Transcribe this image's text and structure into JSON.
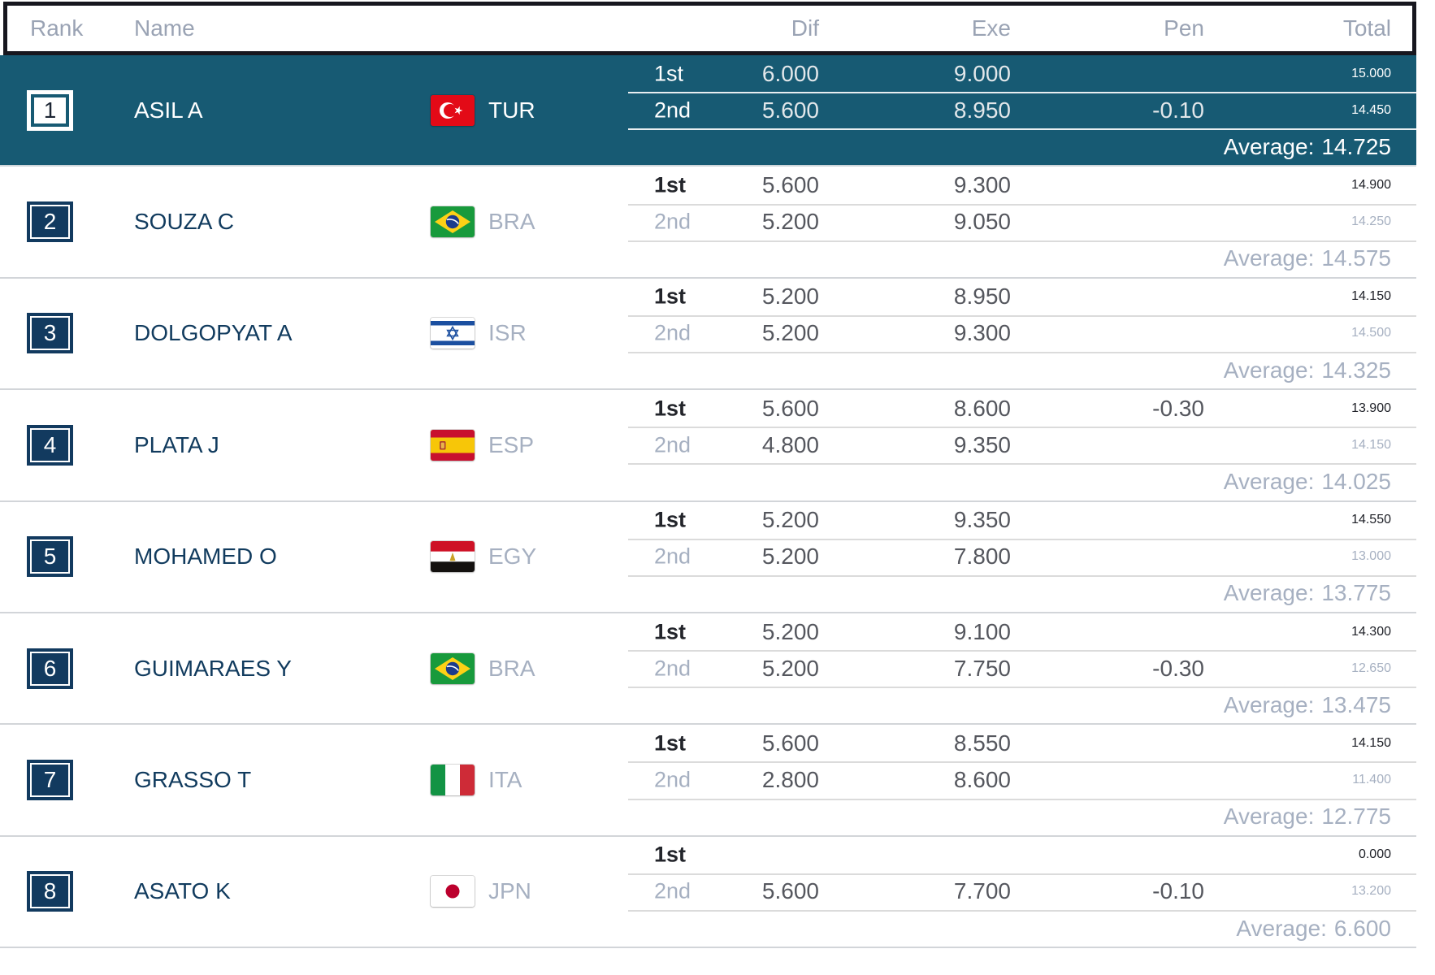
{
  "header": {
    "rank": "Rank",
    "name": "Name",
    "dif": "Dif",
    "exe": "Exe",
    "pen": "Pen",
    "total": "Total"
  },
  "colors": {
    "highlight_row_bg": "#175a73",
    "rank_badge_navy": "#123a5f",
    "athlete_name_navy": "#113b5e",
    "muted_blue_gray": "#a6b0c1",
    "header_border": "#17171f"
  },
  "rows": [
    {
      "rank": "1",
      "name": "ASIL A",
      "country": "TUR",
      "flag": "tur",
      "highlight": true,
      "attempts": [
        {
          "label": "1st",
          "dif": "6.000",
          "exe": "9.000",
          "pen": "",
          "total": "15.000"
        },
        {
          "label": "2nd",
          "dif": "5.600",
          "exe": "8.950",
          "pen": "-0.10",
          "total": "14.450"
        }
      ],
      "average_label": "Average:",
      "average": "14.725"
    },
    {
      "rank": "2",
      "name": "SOUZA C",
      "country": "BRA",
      "flag": "bra",
      "highlight": false,
      "attempts": [
        {
          "label": "1st",
          "dif": "5.600",
          "exe": "9.300",
          "pen": "",
          "total": "14.900"
        },
        {
          "label": "2nd",
          "dif": "5.200",
          "exe": "9.050",
          "pen": "",
          "total": "14.250"
        }
      ],
      "average_label": "Average:",
      "average": "14.575"
    },
    {
      "rank": "3",
      "name": "DOLGOPYAT A",
      "country": "ISR",
      "flag": "isr",
      "highlight": false,
      "attempts": [
        {
          "label": "1st",
          "dif": "5.200",
          "exe": "8.950",
          "pen": "",
          "total": "14.150"
        },
        {
          "label": "2nd",
          "dif": "5.200",
          "exe": "9.300",
          "pen": "",
          "total": "14.500"
        }
      ],
      "average_label": "Average:",
      "average": "14.325"
    },
    {
      "rank": "4",
      "name": "PLATA J",
      "country": "ESP",
      "flag": "esp",
      "highlight": false,
      "attempts": [
        {
          "label": "1st",
          "dif": "5.600",
          "exe": "8.600",
          "pen": "-0.30",
          "total": "13.900"
        },
        {
          "label": "2nd",
          "dif": "4.800",
          "exe": "9.350",
          "pen": "",
          "total": "14.150"
        }
      ],
      "average_label": "Average:",
      "average": "14.025"
    },
    {
      "rank": "5",
      "name": "MOHAMED O",
      "country": "EGY",
      "flag": "egy",
      "highlight": false,
      "attempts": [
        {
          "label": "1st",
          "dif": "5.200",
          "exe": "9.350",
          "pen": "",
          "total": "14.550"
        },
        {
          "label": "2nd",
          "dif": "5.200",
          "exe": "7.800",
          "pen": "",
          "total": "13.000"
        }
      ],
      "average_label": "Average:",
      "average": "13.775"
    },
    {
      "rank": "6",
      "name": "GUIMARAES Y",
      "country": "BRA",
      "flag": "bra",
      "highlight": false,
      "attempts": [
        {
          "label": "1st",
          "dif": "5.200",
          "exe": "9.100",
          "pen": "",
          "total": "14.300"
        },
        {
          "label": "2nd",
          "dif": "5.200",
          "exe": "7.750",
          "pen": "-0.30",
          "total": "12.650"
        }
      ],
      "average_label": "Average:",
      "average": "13.475"
    },
    {
      "rank": "7",
      "name": "GRASSO T",
      "country": "ITA",
      "flag": "ita",
      "highlight": false,
      "attempts": [
        {
          "label": "1st",
          "dif": "5.600",
          "exe": "8.550",
          "pen": "",
          "total": "14.150"
        },
        {
          "label": "2nd",
          "dif": "2.800",
          "exe": "8.600",
          "pen": "",
          "total": "11.400"
        }
      ],
      "average_label": "Average:",
      "average": "12.775"
    },
    {
      "rank": "8",
      "name": "ASATO K",
      "country": "JPN",
      "flag": "jpn",
      "highlight": false,
      "attempts": [
        {
          "label": "1st",
          "dif": "",
          "exe": "",
          "pen": "",
          "total": "0.000"
        },
        {
          "label": "2nd",
          "dif": "5.600",
          "exe": "7.700",
          "pen": "-0.10",
          "total": "13.200"
        }
      ],
      "average_label": "Average:",
      "average": "6.600"
    }
  ]
}
